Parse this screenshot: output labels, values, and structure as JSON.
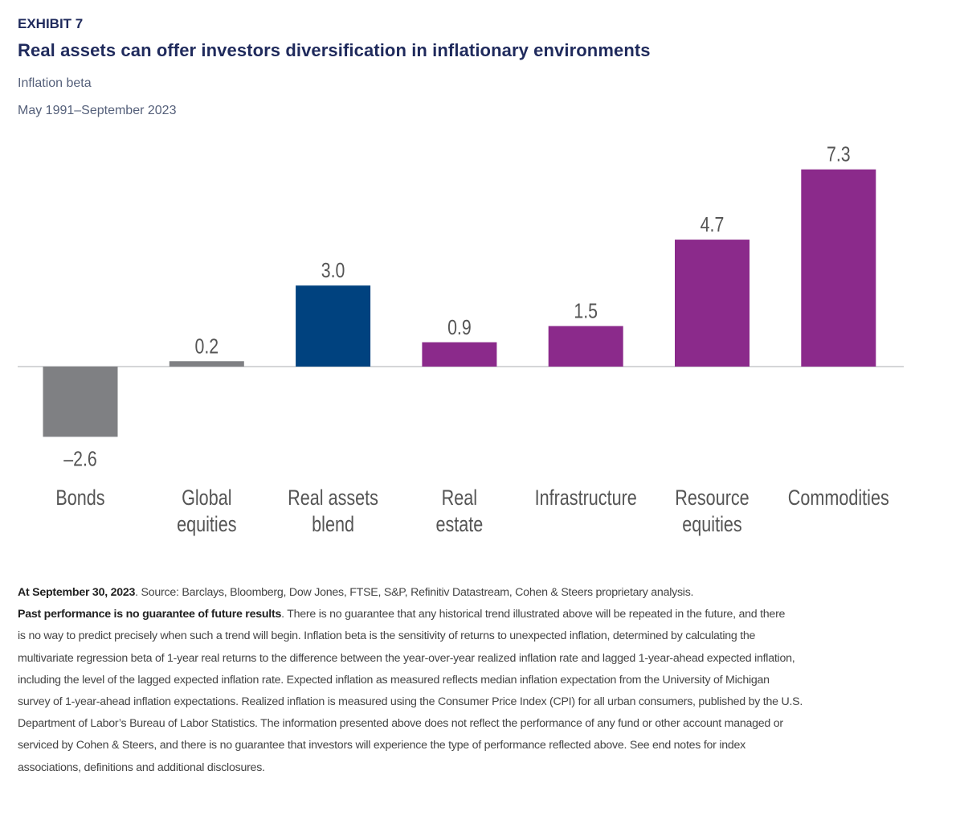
{
  "header": {
    "exhibit": "EXHIBIT 7",
    "title": "Real assets can offer investors diversification in inflationary environments",
    "subtitle": "Inflation beta",
    "date_range": "May 1991–September 2023"
  },
  "chart_data": {
    "type": "bar",
    "title": "Real assets can offer investors diversification in inflationary environments",
    "subtitle": "Inflation beta",
    "xlabel": "",
    "ylabel": "Inflation beta",
    "ylim": [
      -2.6,
      7.3
    ],
    "grid": false,
    "categories": [
      [
        "Bonds"
      ],
      [
        "Global",
        "equities"
      ],
      [
        "Real assets",
        "blend"
      ],
      [
        "Real",
        "estate"
      ],
      [
        "Infrastructure"
      ],
      [
        "Resource",
        "equities"
      ],
      [
        "Commodities"
      ]
    ],
    "values": [
      -2.6,
      0.2,
      3.0,
      0.9,
      1.5,
      4.7,
      7.3
    ],
    "value_labels": [
      "–2.6",
      "0.2",
      "3.0",
      "0.9",
      "1.5",
      "4.7",
      "7.3"
    ],
    "colors": [
      "#7f8083",
      "#7f8083",
      "#00427f",
      "#8b2a8b",
      "#8b2a8b",
      "#8b2a8b",
      "#8b2a8b"
    ],
    "baseline_color": "#d5d6d8",
    "label_color": "#555555"
  },
  "footnotes": {
    "line1_bold": "At September 30, 2023",
    "line1_rest": ". Source: Barclays, Bloomberg, Dow Jones, FTSE, S&P, Refinitiv Datastream, Cohen & Steers proprietary analysis.",
    "line2_bold": "Past performance is no guarantee of future results",
    "line2_rest": ". There is no guarantee that any historical trend illustrated above will be repeated in the future, and there",
    "lines": [
      "is no way to predict precisely when such a trend will begin. Inflation beta is the sensitivity of returns to unexpected inflation, determined by calculating the",
      "multivariate regression beta of 1-year real returns to the difference between the year-over-year realized inflation rate and lagged 1-year-ahead expected inflation,",
      "including the level of the lagged expected inflation rate. Expected inflation as measured reflects median inflation expectation from the University of Michigan",
      "survey of 1-year-ahead inflation expectations. Realized inflation is measured using the Consumer Price Index (CPI) for all urban consumers, published by the U.S.",
      "Department of Labor’s Bureau of Labor Statistics. The information presented above does not reflect the performance of any fund or other account managed or",
      "serviced by Cohen & Steers, and there is no guarantee that investors will experience the type of performance reflected above. See end notes for index",
      "associations, definitions and additional disclosures."
    ]
  }
}
